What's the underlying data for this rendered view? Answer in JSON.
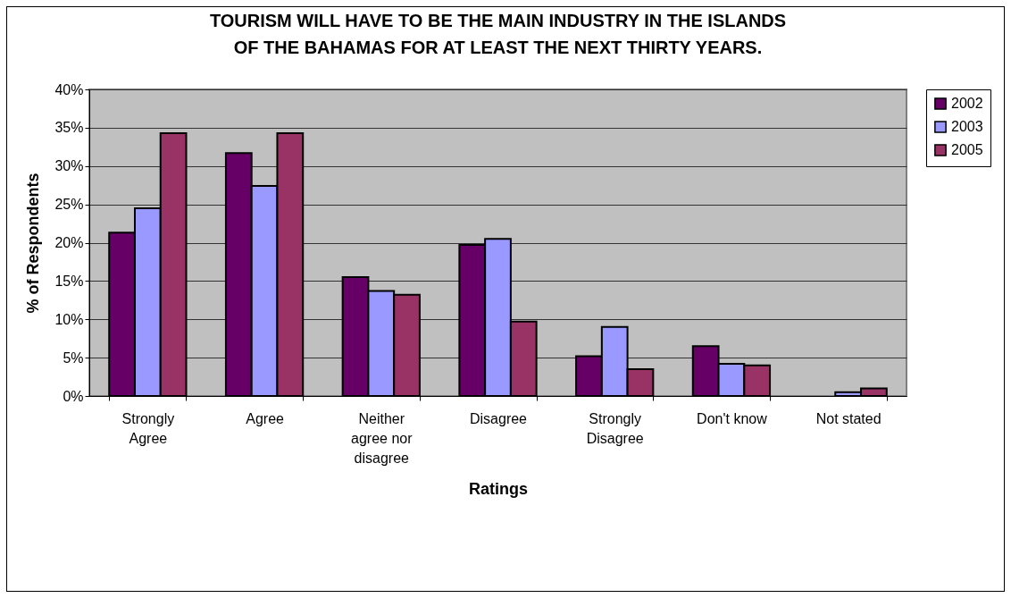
{
  "chart_data": {
    "type": "bar",
    "title": "TOURISM WILL HAVE TO BE THE MAIN INDUSTRY IN THE ISLANDS OF THE BAHAMAS FOR AT LEAST THE NEXT THIRTY YEARS.",
    "xlabel": "Ratings",
    "ylabel": "% of Respondents",
    "categories": [
      "Strongly Agree",
      "Agree",
      "Neither agree nor disagree",
      "Disagree",
      "Strongly Disagree",
      "Don't know",
      "Not stated"
    ],
    "series": [
      {
        "name": "2002",
        "color": "#660066",
        "values": [
          21.3,
          31.7,
          15.5,
          19.7,
          5.2,
          6.5,
          null
        ]
      },
      {
        "name": "2003",
        "color": "#9999ff",
        "values": [
          24.5,
          27.4,
          13.7,
          20.5,
          9.0,
          4.2,
          0.5
        ]
      },
      {
        "name": "2005",
        "color": "#993366",
        "values": [
          34.3,
          34.3,
          13.2,
          9.7,
          3.5,
          4.0,
          1.0
        ]
      }
    ],
    "ylim": [
      0,
      40
    ],
    "yticks": [
      {
        "value": 0,
        "label": "0%"
      },
      {
        "value": 5,
        "label": "5%"
      },
      {
        "value": 10,
        "label": "10%"
      },
      {
        "value": 15,
        "label": "15%"
      },
      {
        "value": 20,
        "label": "20%"
      },
      {
        "value": 25,
        "label": "25%"
      },
      {
        "value": 30,
        "label": "30%"
      },
      {
        "value": 35,
        "label": "35%"
      },
      {
        "value": 40,
        "label": "40%"
      }
    ],
    "grid": "y",
    "legend": "right"
  }
}
